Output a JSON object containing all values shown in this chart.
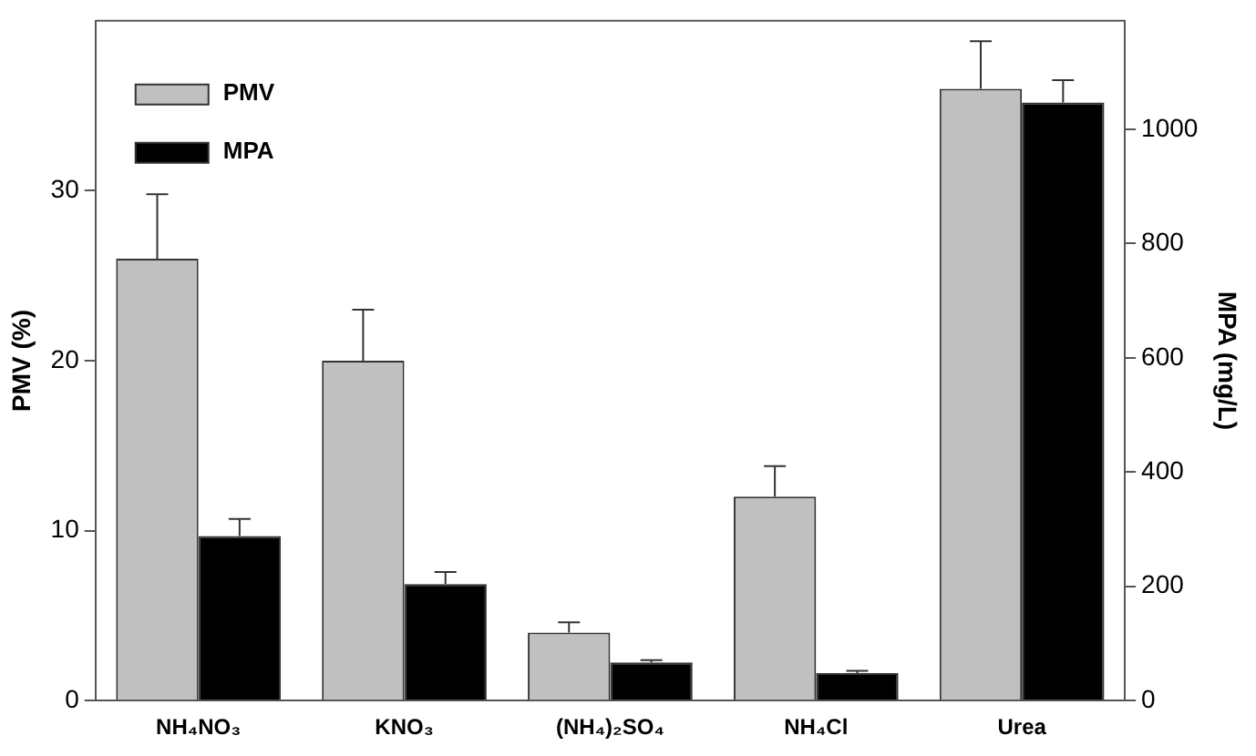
{
  "chart_data": {
    "type": "bar",
    "ylabel": "PMV (%)",
    "y2label": "MPA (mg/L)",
    "categories": [
      "NH₄NO₃",
      "KNO₃",
      "(NH₄)₂SO₄",
      "NH₄Cl",
      "Urea"
    ],
    "series": [
      {
        "name": "PMV",
        "color": "#c0c0c0",
        "values": [
          26,
          20,
          4,
          12,
          36
        ],
        "errors": [
          [
            26,
            29.8
          ],
          [
            20,
            23
          ],
          [
            4,
            4.6
          ],
          [
            12,
            13.8
          ],
          [
            36,
            38.8
          ]
        ]
      },
      {
        "name": "MPA",
        "color": "#000000",
        "axis": "y2",
        "values": [
          288,
          204,
          67,
          48,
          1047
        ],
        "errors": [
          [
            288,
            318
          ],
          [
            204,
            225
          ],
          [
            67,
            71
          ],
          [
            48,
            52
          ],
          [
            1047,
            1086
          ]
        ]
      }
    ],
    "ylim": [
      0,
      40
    ],
    "yticks": [
      0,
      10,
      20,
      30
    ],
    "y2lim": [
      0,
      1190
    ],
    "y2ticks": [
      0,
      200,
      400,
      600,
      800,
      1000
    ],
    "grid": false,
    "legend": "top left"
  }
}
